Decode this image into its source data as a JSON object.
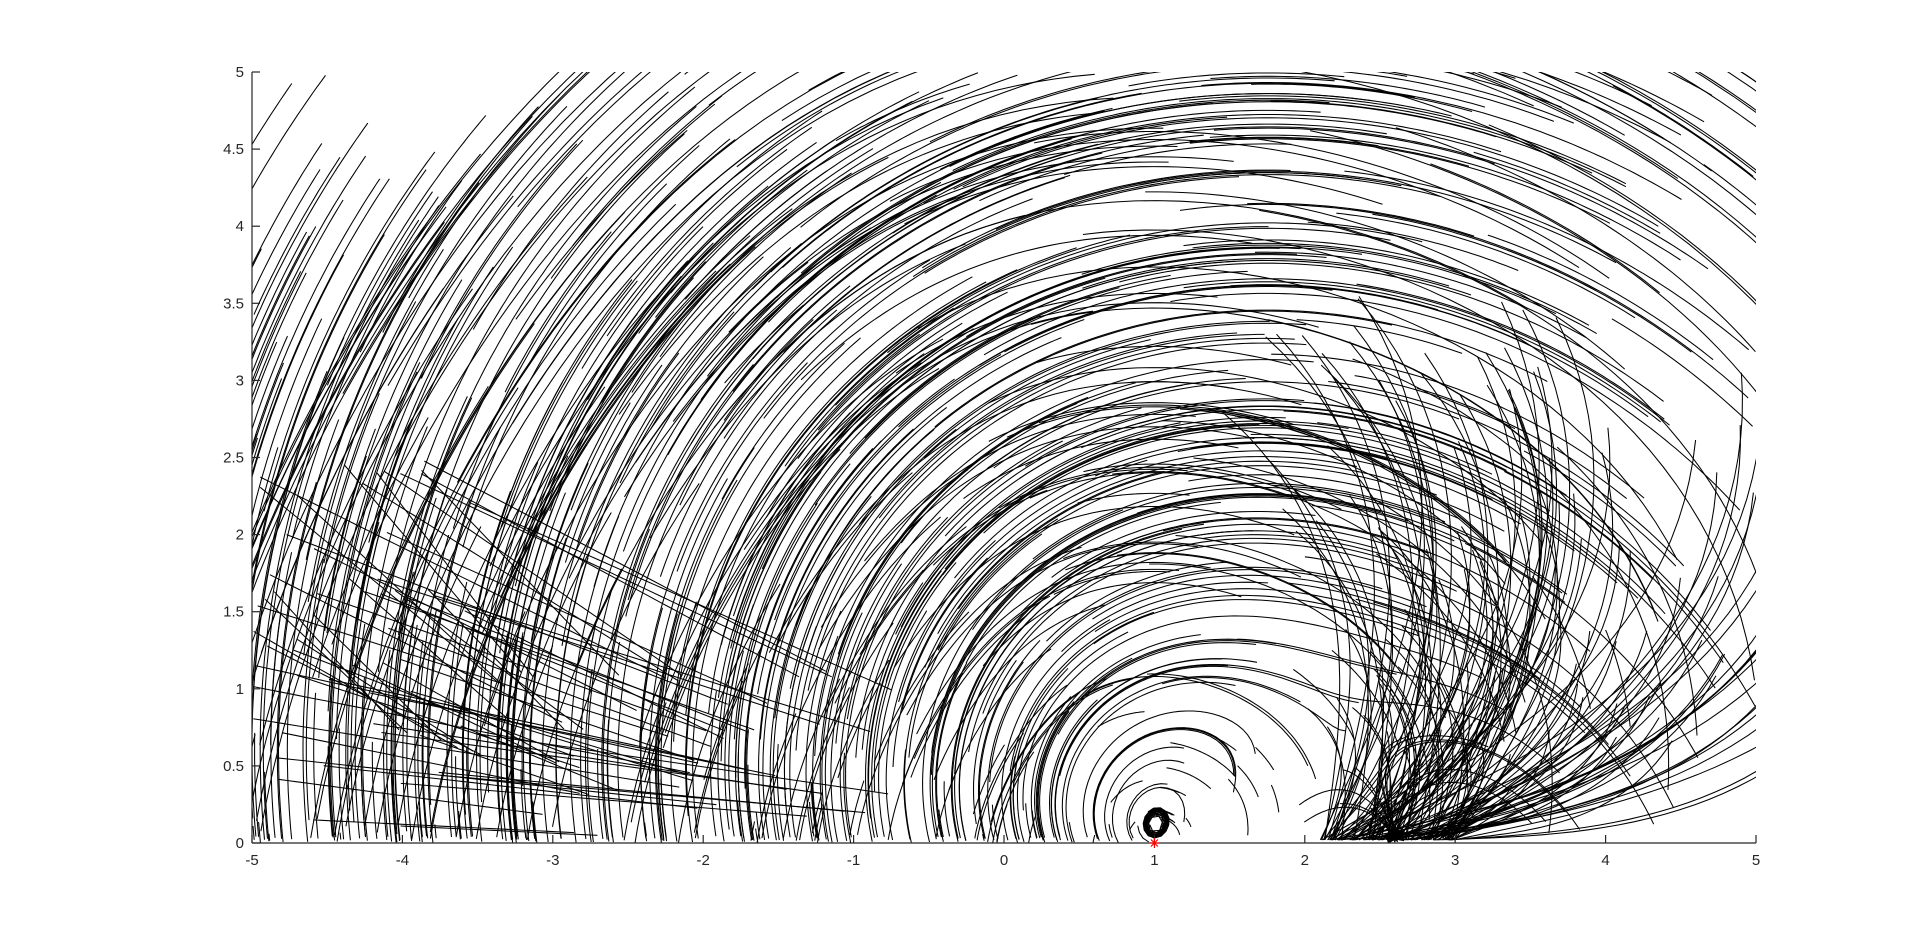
{
  "chart_data": {
    "type": "streamline",
    "title": "",
    "xlabel": "",
    "ylabel": "",
    "xlim": [
      -5,
      5
    ],
    "ylim": [
      0,
      5
    ],
    "xticks": [
      -5,
      -4,
      -3,
      -2,
      -1,
      0,
      1,
      2,
      3,
      4,
      5
    ],
    "yticks": [
      0,
      0.5,
      1,
      1.5,
      2,
      2.5,
      3,
      3.5,
      4,
      4.5,
      5
    ],
    "xtick_labels": [
      "-5",
      "-4",
      "-3",
      "-2",
      "-1",
      "0",
      "1",
      "2",
      "3",
      "4",
      "5"
    ],
    "ytick_labels": [
      "0",
      "0.5",
      "1",
      "1.5",
      "2",
      "2.5",
      "3",
      "3.5",
      "4",
      "4.5",
      "5"
    ],
    "grid": false,
    "legend": "none",
    "field": {
      "description_source": "streamlines circulating about a source point on the x-axis, with dense converging lines toward the right",
      "vortex_center": [
        1,
        0
      ],
      "stream_color": "#000000"
    },
    "marker": {
      "x": 1,
      "y": 0,
      "symbol": "*",
      "color": "#ff0000"
    },
    "colors": {
      "axes": "#262626",
      "background": "#ffffff",
      "streams": "#000000",
      "marker": "#ff0000"
    }
  }
}
